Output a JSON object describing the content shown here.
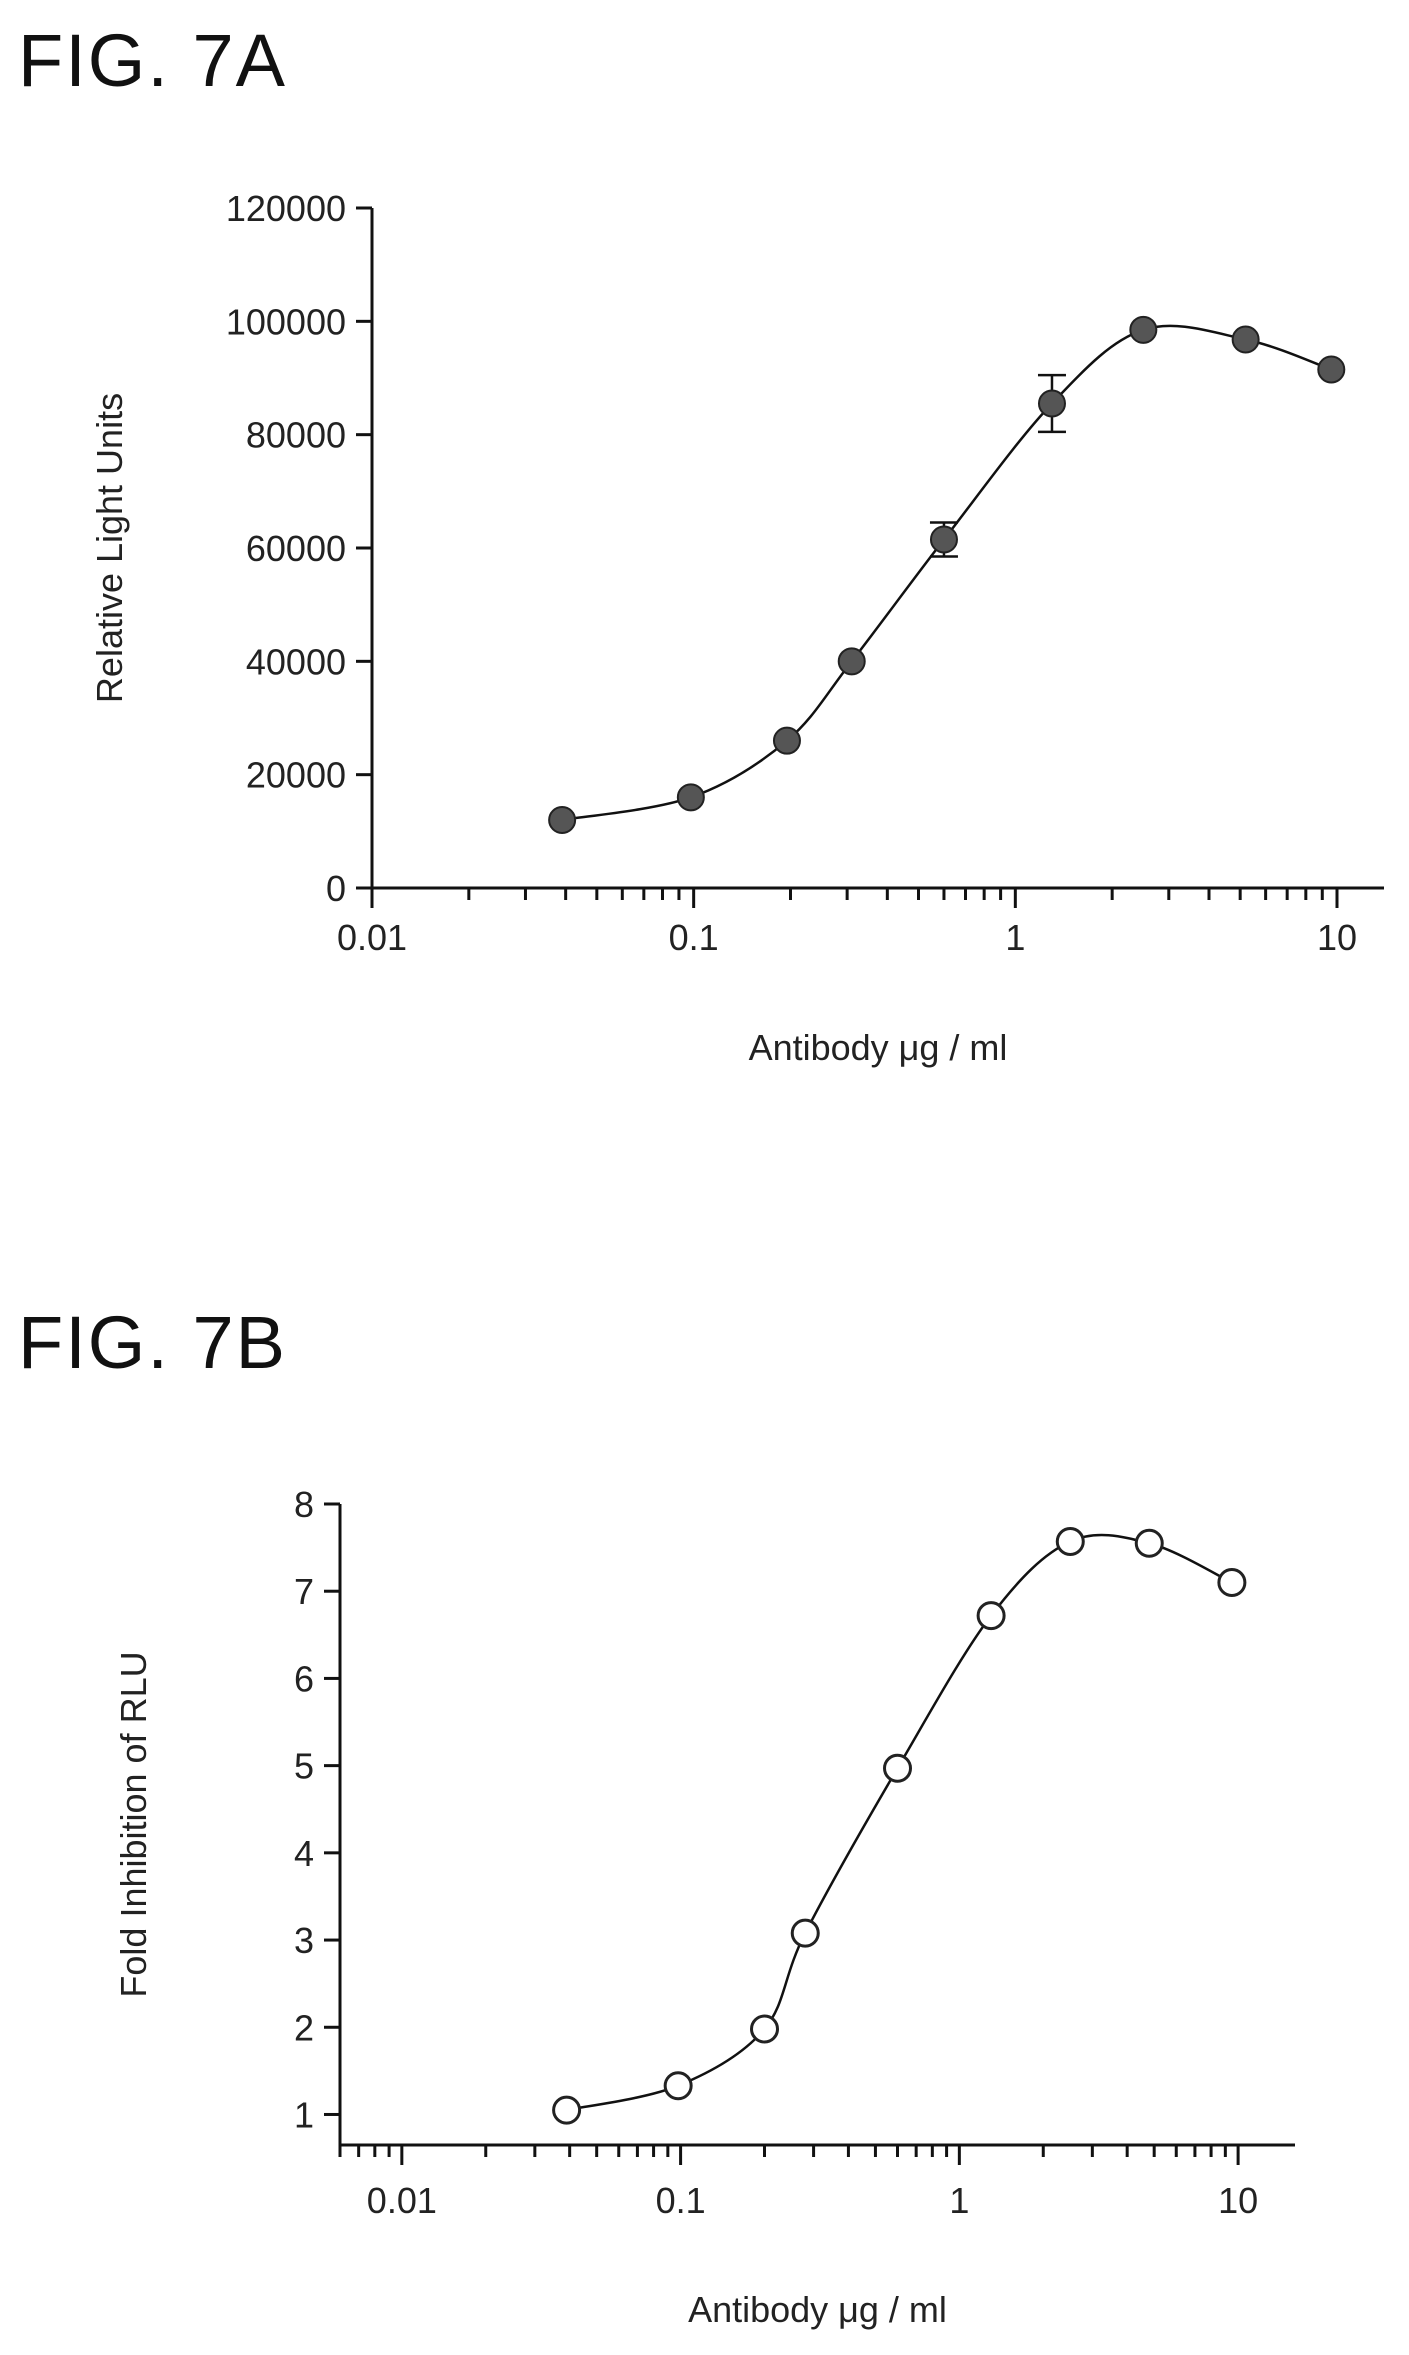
{
  "figures": {
    "a_title": "FIG. 7A",
    "b_title": "FIG. 7B"
  },
  "chart_data": [
    {
      "type": "scatter",
      "title": "FIG. 7A",
      "xlabel": "Antibody μg / ml",
      "ylabel": "Relative Light Units",
      "xscale": "log",
      "xlim": [
        0.01,
        14
      ],
      "ylim": [
        0,
        120000
      ],
      "x_ticks": [
        "0.01",
        "0.1",
        "1",
        "10"
      ],
      "y_ticks": [
        "0",
        "20000",
        "40000",
        "60000",
        "80000",
        "100000",
        "120000"
      ],
      "marker": "filled-circle",
      "fit_line": true,
      "grid": false,
      "series": [
        {
          "x": [
            0.039,
            0.098,
            0.195,
            0.31,
            0.6,
            1.3,
            2.5,
            5.2,
            9.6
          ],
          "y": [
            12000,
            16000,
            26000,
            40000,
            61500,
            85500,
            98500,
            96800,
            91500
          ],
          "error": [
            0,
            0,
            0,
            0,
            3000,
            5000,
            0,
            0,
            0
          ]
        }
      ]
    },
    {
      "type": "scatter",
      "title": "FIG. 7B",
      "xlabel": "Antibody μg / ml",
      "ylabel": "Fold Inhibition of RLU",
      "xscale": "log",
      "xlim": [
        0.006,
        16
      ],
      "ylim": [
        0.65,
        8
      ],
      "x_ticks": [
        "0.01",
        "0.1",
        "1",
        "10"
      ],
      "y_ticks": [
        "1",
        "2",
        "3",
        "4",
        "5",
        "6",
        "7",
        "8"
      ],
      "marker": "open-circle",
      "fit_line": true,
      "grid": false,
      "series": [
        {
          "x": [
            0.039,
            0.098,
            0.2,
            0.28,
            0.6,
            1.3,
            2.5,
            4.8,
            9.5
          ],
          "y": [
            1.05,
            1.33,
            1.98,
            3.08,
            4.97,
            6.72,
            7.57,
            7.55,
            7.1
          ],
          "error": [
            0,
            0,
            0,
            0,
            0,
            0,
            0,
            0,
            0
          ]
        }
      ]
    }
  ]
}
